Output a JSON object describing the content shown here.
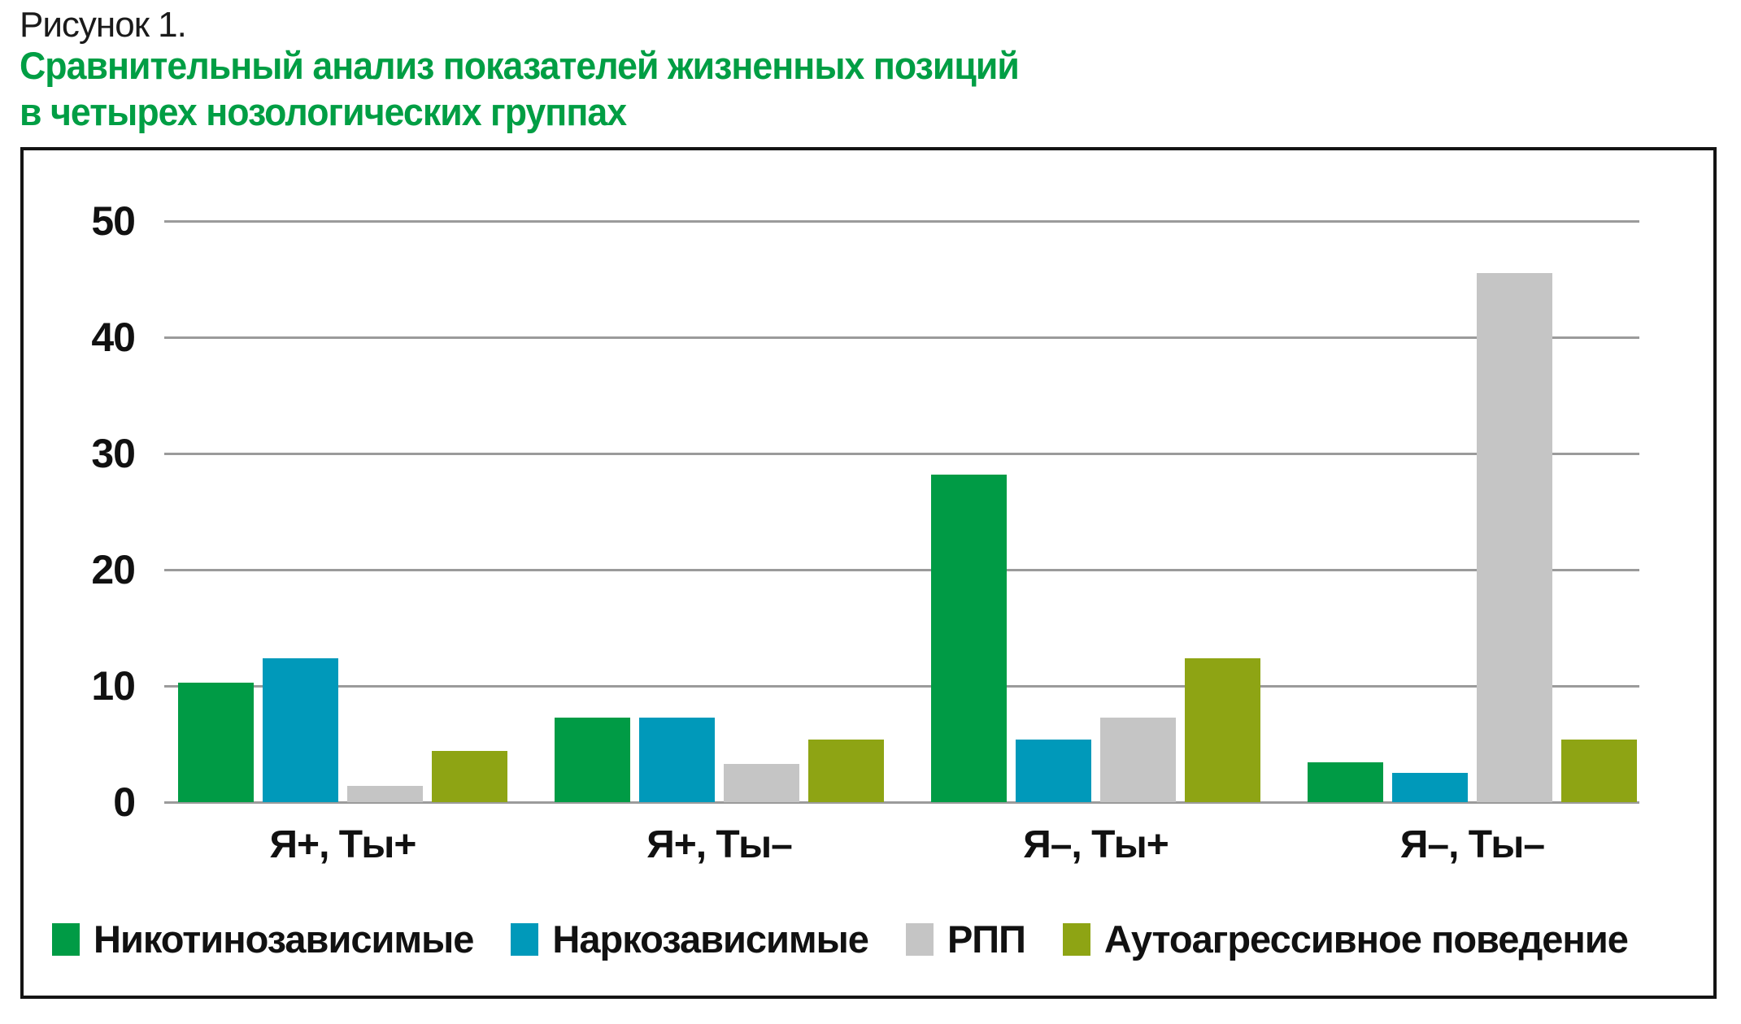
{
  "figure": {
    "label": "Рисунок 1.",
    "title_line1": "Сравнительный анализ показателей жизненных позиций",
    "title_line2": "в четырех нозологических группах",
    "title_color": "#009E44"
  },
  "chart_data": {
    "type": "bar",
    "categories": [
      "Я+, Ты+",
      "Я+, Ты–",
      "Я–, Ты+",
      "Я–, Ты–"
    ],
    "series": [
      {
        "name": "Никотинозависимые",
        "color": "#009B45",
        "values": [
          10.3,
          7.3,
          28.2,
          3.4
        ]
      },
      {
        "name": "Наркозависимые",
        "color": "#0099BA",
        "values": [
          12.4,
          7.3,
          5.4,
          2.5
        ]
      },
      {
        "name": "РПП",
        "color": "#C5C5C5",
        "values": [
          1.4,
          3.3,
          7.3,
          45.5
        ]
      },
      {
        "name": "Аутоагрессивное поведение",
        "color": "#8EA414",
        "values": [
          4.4,
          5.4,
          12.4,
          5.4
        ]
      }
    ],
    "title": "",
    "xlabel": "",
    "ylabel": "",
    "ylim": [
      0,
      50
    ],
    "yticks": [
      0,
      10,
      20,
      30,
      40,
      50
    ],
    "grid": true,
    "gridline_color": "#9B9B9B",
    "frame_color": "#141414",
    "legend_position": "bottom"
  }
}
